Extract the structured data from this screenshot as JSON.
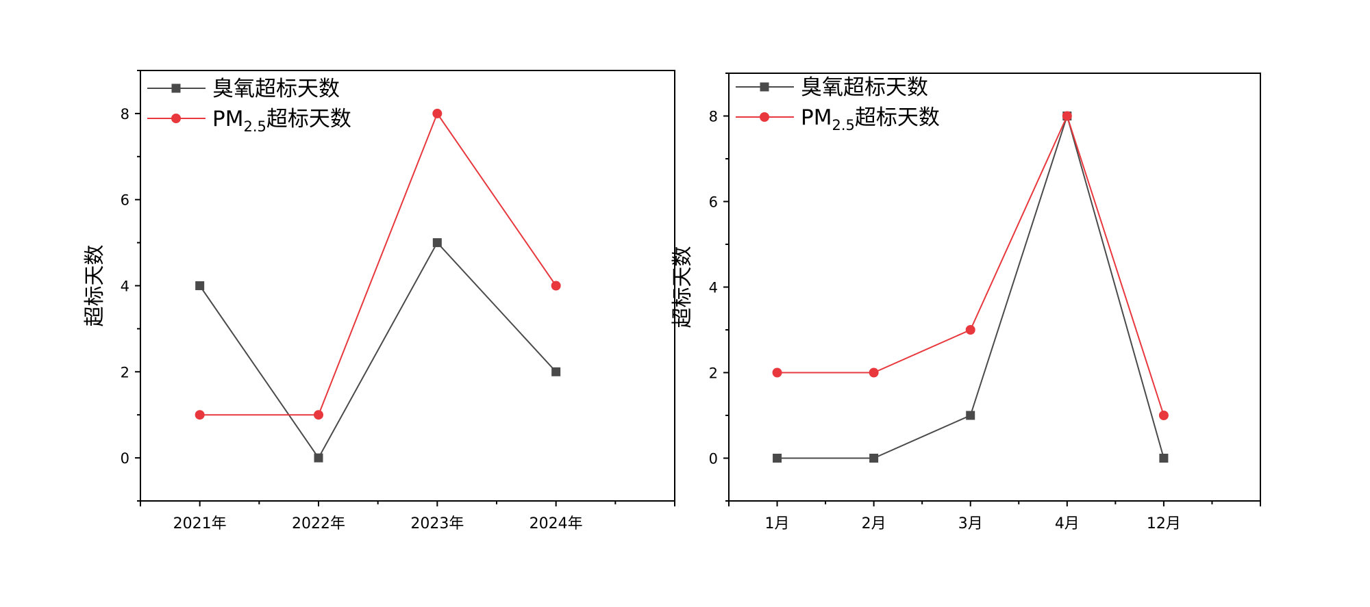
{
  "chart_data": [
    {
      "type": "line",
      "ylabel": "超标天数",
      "ylim": [
        -1,
        9
      ],
      "yticks": [
        0,
        2,
        4,
        6,
        8
      ],
      "categories": [
        "2021年",
        "2022年",
        "2023年",
        "2024年"
      ],
      "legend_placement": "top-left",
      "series": [
        {
          "name": "臭氧超标天数",
          "name_sub": "",
          "name_suffix": "",
          "marker": "square",
          "color": "#4a4a4a",
          "values": [
            4,
            0,
            5,
            2
          ]
        },
        {
          "name": "PM",
          "name_sub": "2.5",
          "name_suffix": "超标天数",
          "marker": "circle",
          "color": "#e8383d",
          "values": [
            1,
            1,
            8,
            4
          ]
        }
      ]
    },
    {
      "type": "line",
      "ylabel": "超标天数",
      "ylim": [
        -1,
        9
      ],
      "yticks": [
        0,
        2,
        4,
        6,
        8
      ],
      "categories": [
        "1月",
        "2月",
        "3月",
        "4月",
        "12月"
      ],
      "legend_placement": "top-left",
      "series": [
        {
          "name": "臭氧超标天数",
          "name_sub": "",
          "name_suffix": "",
          "marker": "square",
          "color": "#4a4a4a",
          "values": [
            0,
            0,
            1,
            8,
            0
          ]
        },
        {
          "name": "PM",
          "name_sub": "2.5",
          "name_suffix": "超标天数",
          "marker": "circle",
          "color": "#e8383d",
          "values": [
            2,
            2,
            3,
            8,
            1
          ]
        }
      ]
    }
  ]
}
